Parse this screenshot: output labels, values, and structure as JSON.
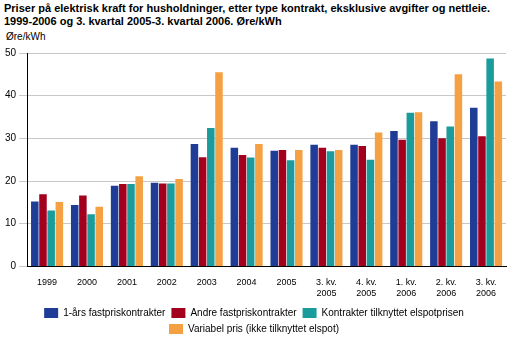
{
  "chart_data": {
    "type": "bar",
    "title": "Priser på elektrisk kraft for husholdninger, etter type kontrakt, eksklusive avgifter og nettleie. 1999-2006 og 3. kvartal 2005-3. kvartal 2006. Øre/kWh",
    "y_label": "Øre/kWh",
    "categories": [
      "1999",
      "2000",
      "2001",
      "2002",
      "2003",
      "2004",
      "2005",
      "3. kv. 2005",
      "4. kv. 2005",
      "1. kv. 2006",
      "2. kv. 2006",
      "3. kv. 2006"
    ],
    "series": [
      {
        "name": "1-års fastpriskontrakter",
        "color": "#1f3c96",
        "values": [
          15.2,
          14.4,
          18.9,
          19.6,
          28.7,
          27.8,
          27.1,
          28.5,
          28.5,
          31.7,
          34.0,
          37.2
        ]
      },
      {
        "name": "Andre fastpriskontrakter",
        "color": "#a3001e",
        "values": [
          16.9,
          16.6,
          19.3,
          19.4,
          25.6,
          26.1,
          27.3,
          27.8,
          28.2,
          29.7,
          30.0,
          30.5
        ]
      },
      {
        "name": "Kontrakter tilknyttet elspotprisen",
        "color": "#1b9c9c",
        "values": [
          13.1,
          12.2,
          19.3,
          19.4,
          32.4,
          25.5,
          24.9,
          27.0,
          25.0,
          36.0,
          32.8,
          48.7
        ]
      },
      {
        "name": "Variabel pris (ikke tilknyttet elspot)",
        "color": "#f5a042",
        "values": [
          15.1,
          14.0,
          21.1,
          20.5,
          45.5,
          28.7,
          27.3,
          27.3,
          31.4,
          36.1,
          45.0,
          43.3
        ]
      }
    ],
    "ylim": [
      0,
      50
    ],
    "yticks": [
      0,
      10,
      20,
      30,
      40,
      50
    ],
    "grid": true,
    "legend": "bottom"
  }
}
